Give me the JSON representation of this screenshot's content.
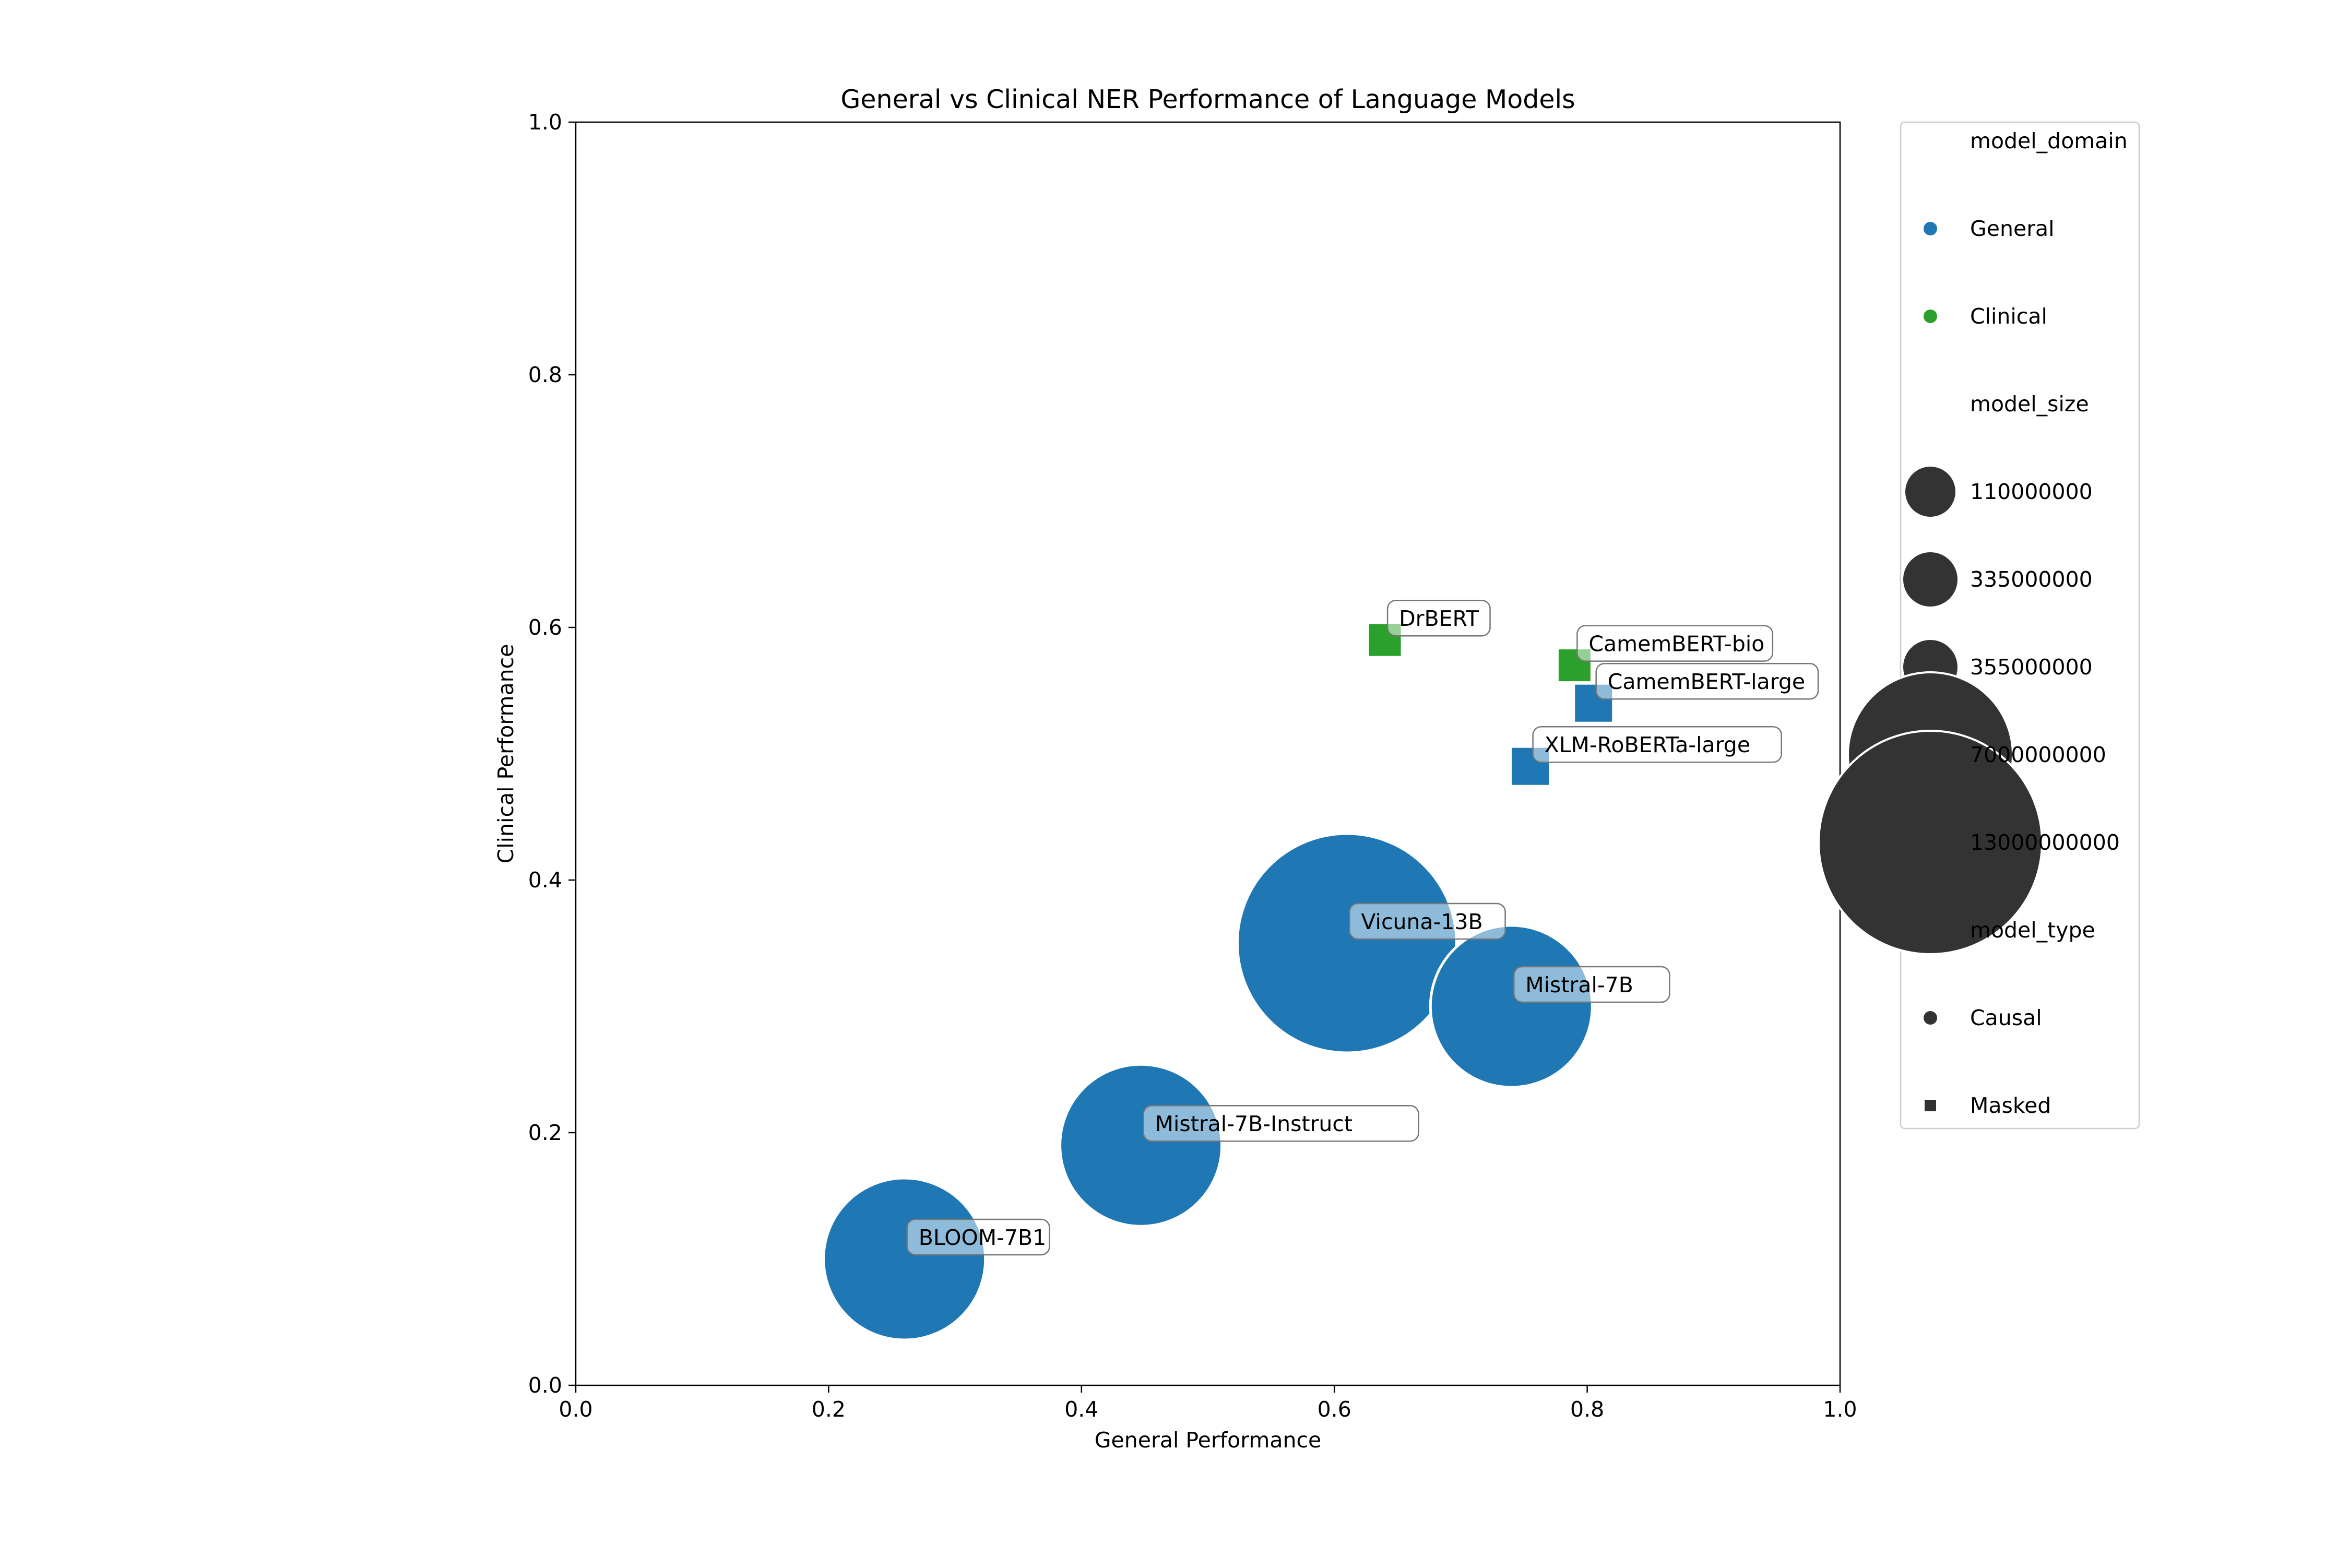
{
  "chart_data": {
    "type": "scatter",
    "title": "General vs Clinical NER Performance of Language Models",
    "xlabel": "General Performance",
    "ylabel": "Clinical Performance",
    "xlim": [
      0.0,
      1.0
    ],
    "ylim": [
      0.0,
      1.0
    ],
    "x_ticks": [
      "0.0",
      "0.2",
      "0.4",
      "0.6",
      "0.8",
      "1.0"
    ],
    "y_ticks": [
      "0.0",
      "0.2",
      "0.4",
      "0.6",
      "0.8",
      "1.0"
    ],
    "grid": false,
    "legend_position": "outside-right",
    "colors": {
      "General": "#1f77b4",
      "Clinical": "#2ca02c",
      "neutral": "#333333"
    },
    "points": [
      {
        "label": "DrBERT",
        "x": 0.64,
        "y": 0.59,
        "model_domain": "Clinical",
        "model_size": 110000000,
        "model_type": "Masked"
      },
      {
        "label": "CamemBERT-bio",
        "x": 0.79,
        "y": 0.57,
        "model_domain": "Clinical",
        "model_size": 110000000,
        "model_type": "Masked"
      },
      {
        "label": "CamemBERT-large",
        "x": 0.805,
        "y": 0.54,
        "model_domain": "General",
        "model_size": 335000000,
        "model_type": "Masked"
      },
      {
        "label": "XLM-RoBERTa-large",
        "x": 0.755,
        "y": 0.49,
        "model_domain": "General",
        "model_size": 355000000,
        "model_type": "Masked"
      },
      {
        "label": "Vicuna-13B",
        "x": 0.61,
        "y": 0.35,
        "model_domain": "General",
        "model_size": 13000000000,
        "model_type": "Causal"
      },
      {
        "label": "Mistral-7B",
        "x": 0.74,
        "y": 0.3,
        "model_domain": "General",
        "model_size": 7000000000,
        "model_type": "Causal"
      },
      {
        "label": "Mistral-7B-Instruct",
        "x": 0.447,
        "y": 0.19,
        "model_domain": "General",
        "model_size": 7000000000,
        "model_type": "Causal"
      },
      {
        "label": "BLOOM-7B1",
        "x": 0.26,
        "y": 0.1,
        "model_domain": "General",
        "model_size": 7000000000,
        "model_type": "Causal"
      }
    ],
    "legend": {
      "model_domain": {
        "title": "model_domain",
        "entries": [
          "General",
          "Clinical"
        ]
      },
      "model_size": {
        "title": "model_size",
        "entries": [
          "110000000",
          "335000000",
          "355000000",
          "7000000000",
          "13000000000"
        ]
      },
      "model_type": {
        "title": "model_type",
        "entries": [
          "Causal",
          "Masked"
        ]
      }
    }
  }
}
